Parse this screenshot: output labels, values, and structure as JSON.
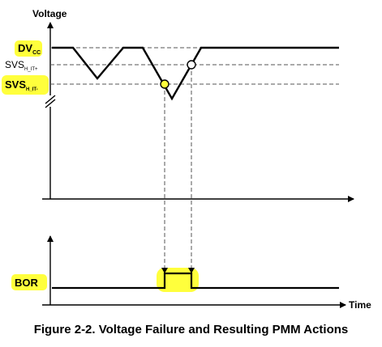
{
  "y_axis_label": "Voltage",
  "x_axis_label": "Time",
  "levels": {
    "dvcc": {
      "main": "DV",
      "sub": "CC"
    },
    "svs_plus": {
      "main": "SVS",
      "sub": "H_IT+"
    },
    "svs_minus": {
      "main": "SVS",
      "sub": "H_IT-"
    }
  },
  "bor_label": "BOR",
  "caption": "Figure 2-2. Voltage Failure and Resulting PMM Actions",
  "colors": {
    "highlight": "#ffff3c",
    "line": "#000000",
    "dashed": "#555555"
  }
}
